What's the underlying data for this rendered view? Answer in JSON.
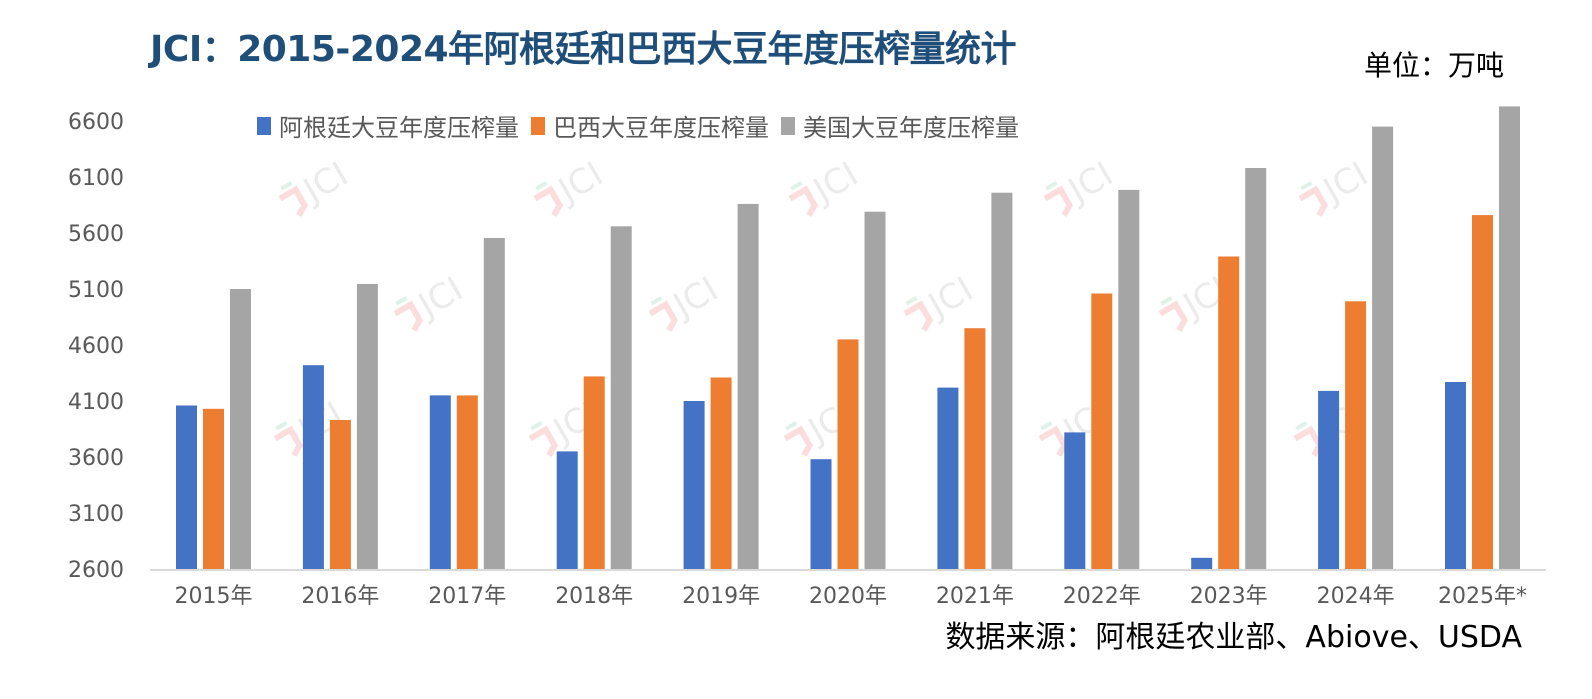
{
  "header": {
    "title": "JCI：2015-2024年阿根廷和巴西大豆年度压榨量统计",
    "unit": "单位：万吨"
  },
  "footer": {
    "source": "数据来源：阿根廷农业部、Abiove、USDA"
  },
  "watermark": {
    "text": "JCI"
  },
  "chart_data": {
    "type": "bar",
    "title": "JCI：2015-2024年阿根廷和巴西大豆年度压榨量统计",
    "xlabel": "",
    "ylabel": "单位：万吨",
    "ylim": [
      2600,
      6600
    ],
    "yticks": [
      6600,
      6100,
      5600,
      5100,
      4600,
      4100,
      3600,
      3100,
      2600
    ],
    "grid": false,
    "legend_position": "top",
    "categories": [
      "2015年",
      "2016年",
      "2017年",
      "2018年",
      "2019年",
      "2020年",
      "2021年",
      "2022年",
      "2023年",
      "2024年",
      "2025年*"
    ],
    "series": [
      {
        "name": "阿根廷大豆年度压榨量",
        "color": "#4472c4",
        "values": [
          4060,
          4420,
          4150,
          3650,
          4100,
          3580,
          4220,
          3820,
          2700,
          4190,
          4270
        ]
      },
      {
        "name": "巴西大豆年度压榨量",
        "color": "#ed7d31",
        "values": [
          4030,
          3930,
          4150,
          4320,
          4310,
          4650,
          4750,
          5060,
          5390,
          4990,
          5760
        ]
      },
      {
        "name": "美国大豆年度压榨量",
        "color": "#a5a5a5",
        "values": [
          5100,
          5145,
          5555,
          5660,
          5860,
          5790,
          5960,
          5985,
          6180,
          6550,
          6730
        ]
      }
    ]
  }
}
